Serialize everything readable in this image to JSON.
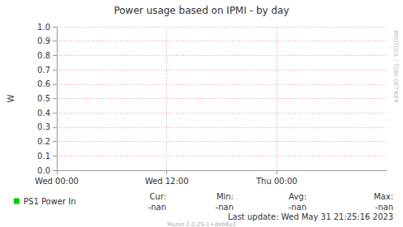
{
  "chart_data": {
    "type": "line",
    "title": "Power usage based on IPMI - by day",
    "y_label": "W",
    "x": [],
    "series": [
      {
        "name": "PS1 Power In",
        "color": "#00cc00",
        "values": []
      }
    ],
    "xlim": [
      0,
      36
    ],
    "xticks": [
      {
        "value": 0,
        "label": "Wed 00:00"
      },
      {
        "value": 12,
        "label": "Wed 12:00"
      },
      {
        "value": 24,
        "label": "Thu 00:00"
      }
    ],
    "ylim": [
      0,
      1
    ],
    "yticks": [
      {
        "value": 0,
        "label": "0.0"
      },
      0.1,
      0.2,
      0.3,
      0.4,
      0.5,
      0.6,
      0.7,
      0.8,
      0.9,
      {
        "value": 1,
        "label": "1.0"
      }
    ],
    "grid": true,
    "legend": "bottom-left",
    "stats": [
      {
        "label": "Cur:",
        "value": "-nan"
      },
      {
        "label": "Min:",
        "value": "-nan"
      },
      {
        "label": "Avg:",
        "value": "-nan"
      },
      {
        "label": "Max:",
        "value": "-nan"
      }
    ],
    "last_update": "Last update: Wed May 31 21:25:16 2023",
    "footer": "Munin 2.0.25-1+deb8u3",
    "watermark": "RRDTOOL / TOBI OETIKER"
  }
}
